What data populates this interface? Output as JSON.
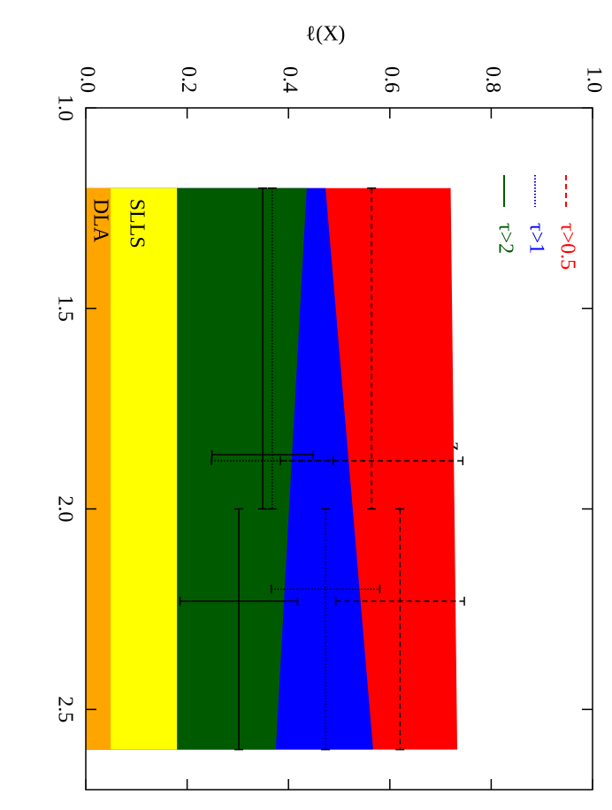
{
  "chart_data": {
    "type": "band-errorbar",
    "xlabel": "z",
    "ylabel": "ℓ(X)",
    "xlim": [
      1.0,
      2.7
    ],
    "xticks": [
      {
        "value": 1.0,
        "label": "1.0"
      },
      1.5,
      {
        "value": 2.0,
        "label": "2.0"
      },
      2.5
    ],
    "ylim": [
      0,
      1.0
    ],
    "yticks": [
      {
        "value": 0,
        "label": "0.0"
      },
      0.2,
      0.4,
      0.6,
      0.8,
      {
        "value": 1.0,
        "label": "1.0"
      }
    ],
    "band_x": [
      1.2,
      2.6
    ],
    "bands": [
      {
        "name": "DLA",
        "color": "#ffa500",
        "values": [
          0.049,
          0.049
        ]
      },
      {
        "name": "SLLS",
        "color": "#ffff00",
        "values": [
          0.18,
          0.18
        ]
      }
    ],
    "series": [
      {
        "name": "τ>0.5",
        "color": "#ff0000",
        "dash": "6,4",
        "band": [
          0.72,
          0.733
        ],
        "x": [
          1.88,
          2.23
        ],
        "z_ranges": [
          [
            1.2,
            2.0
          ],
          [
            2.0,
            2.6
          ]
        ],
        "values": [
          0.564,
          0.62
        ],
        "errors": [
          0.18,
          0.127
        ]
      },
      {
        "name": "τ>1",
        "color": "#0000ff",
        "dash": "1.5,2",
        "band": [
          0.473,
          0.567
        ],
        "x": [
          1.88,
          2.2
        ],
        "z_ranges": [
          [
            1.2,
            2.0
          ],
          [
            2.0,
            2.6
          ]
        ],
        "values": [
          0.368,
          0.473
        ],
        "errors": [
          0.12,
          0.107
        ]
      },
      {
        "name": "τ>2",
        "color": "#005a00",
        "dash": "none",
        "band": [
          0.436,
          0.375
        ],
        "x": [
          1.865,
          2.23
        ],
        "z_ranges": [
          [
            1.2,
            2.0
          ],
          [
            2.0,
            2.6
          ]
        ],
        "values": [
          0.349,
          0.302
        ],
        "errors": [
          0.1,
          0.116
        ]
      }
    ]
  }
}
